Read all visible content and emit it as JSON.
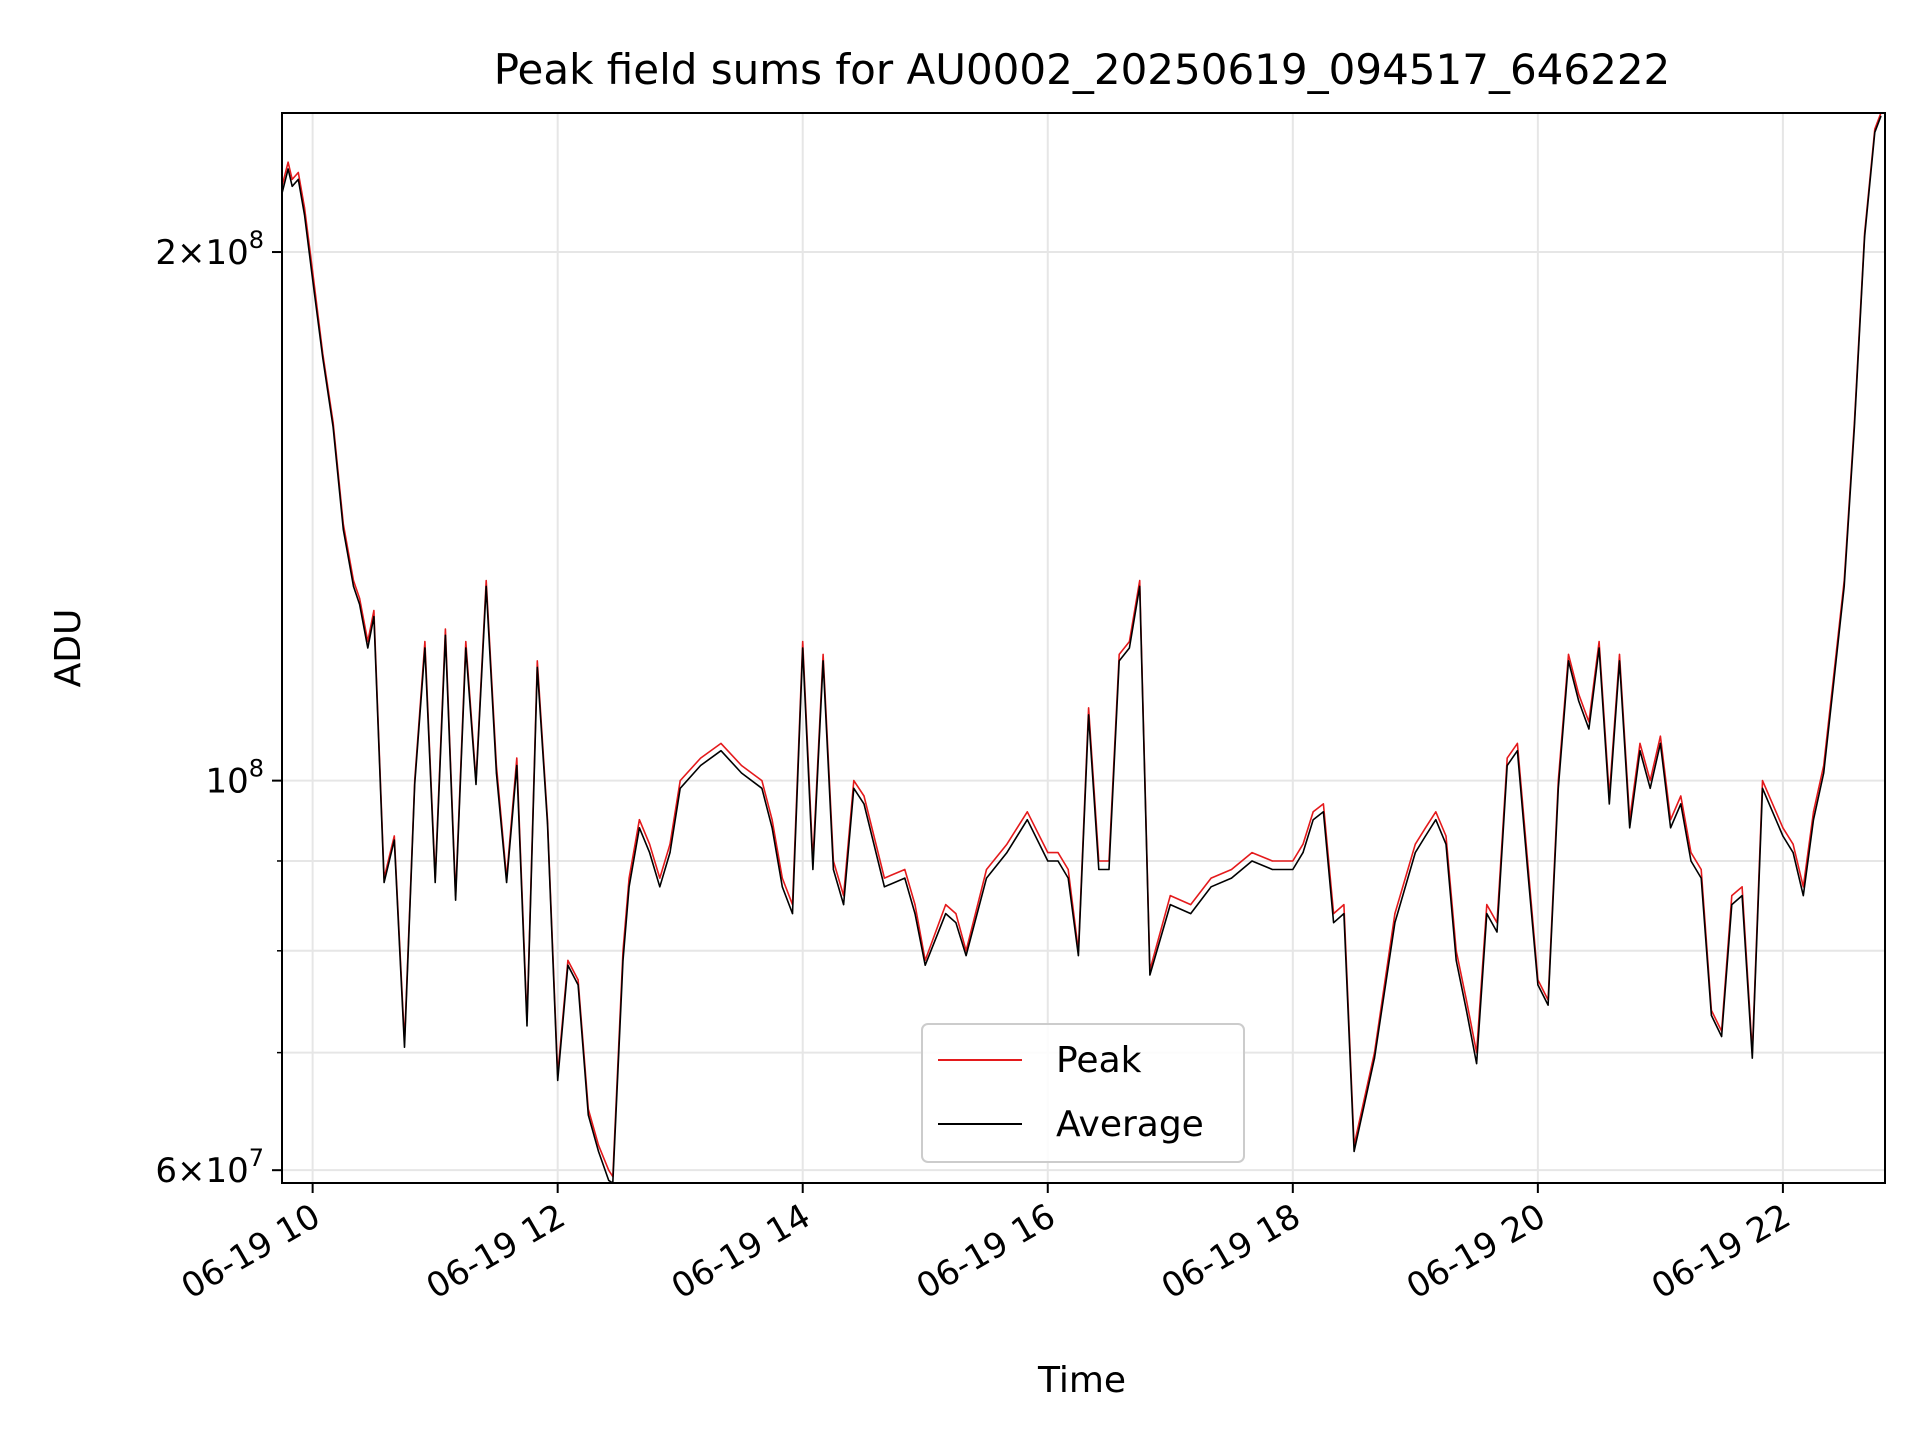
{
  "chart_data": {
    "type": "line",
    "title": "Peak field sums for AU0002_20250619_094517_646222",
    "xlabel": "Time",
    "ylabel": "ADU",
    "yscale": "log",
    "xlim": [
      "2025-06-19 09:45",
      "2025-06-19 22:50"
    ],
    "ylim": [
      59000000,
      240000000
    ],
    "grid": true,
    "legend_position": "lower-center",
    "x_ticks": [
      "06-19 10",
      "06-19 12",
      "06-19 14",
      "06-19 16",
      "06-19 18",
      "06-19 20",
      "06-19 22"
    ],
    "y_major_ticks": [
      {
        "value": 200000000,
        "label_base": "2×10",
        "label_exp": "8"
      },
      {
        "value": 100000000,
        "label_base": "10",
        "label_exp": "8"
      },
      {
        "value": 60000000,
        "label_base": "6×10",
        "label_exp": "7"
      }
    ],
    "y_minor_gridlines": [
      70000000,
      80000000,
      90000000
    ],
    "x": [
      "09:45",
      "09:48",
      "09:50",
      "09:53",
      "09:56",
      "10:00",
      "10:05",
      "10:10",
      "10:15",
      "10:20",
      "10:23",
      "10:27",
      "10:30",
      "10:35",
      "10:40",
      "10:45",
      "10:50",
      "10:55",
      "11:00",
      "11:05",
      "11:10",
      "11:15",
      "11:20",
      "11:25",
      "11:30",
      "11:35",
      "11:40",
      "11:45",
      "11:50",
      "11:55",
      "12:00",
      "12:05",
      "12:10",
      "12:15",
      "12:20",
      "12:25",
      "12:27",
      "12:32",
      "12:35",
      "12:40",
      "12:45",
      "12:50",
      "12:55",
      "13:00",
      "13:10",
      "13:20",
      "13:30",
      "13:40",
      "13:45",
      "13:50",
      "13:55",
      "14:00",
      "14:05",
      "14:10",
      "14:15",
      "14:20",
      "14:25",
      "14:30",
      "14:40",
      "14:50",
      "14:55",
      "15:00",
      "15:10",
      "15:15",
      "15:20",
      "15:30",
      "15:40",
      "15:50",
      "16:00",
      "16:05",
      "16:10",
      "16:15",
      "16:20",
      "16:25",
      "16:30",
      "16:35",
      "16:40",
      "16:45",
      "16:50",
      "17:00",
      "17:10",
      "17:20",
      "17:30",
      "17:40",
      "17:50",
      "18:00",
      "18:05",
      "18:10",
      "18:15",
      "18:20",
      "18:25",
      "18:30",
      "18:40",
      "18:50",
      "19:00",
      "19:05",
      "19:10",
      "19:15",
      "19:20",
      "19:25",
      "19:30",
      "19:35",
      "19:40",
      "19:45",
      "19:50",
      "19:55",
      "20:00",
      "20:05",
      "20:10",
      "20:15",
      "20:20",
      "20:25",
      "20:30",
      "20:35",
      "20:40",
      "20:45",
      "20:50",
      "20:55",
      "21:00",
      "21:05",
      "21:10",
      "21:15",
      "21:20",
      "21:25",
      "21:30",
      "21:35",
      "21:40",
      "21:45",
      "21:50",
      "22:00",
      "22:05",
      "22:10",
      "22:15",
      "22:20",
      "22:25",
      "22:30",
      "22:35",
      "22:40",
      "22:45",
      "22:48"
    ],
    "series": [
      {
        "name": "Peak",
        "color": "#e41a1c",
        "values": [
          218000000,
          225000000,
          220000000,
          222000000,
          212000000,
          195000000,
          175000000,
          160000000,
          140000000,
          130000000,
          127000000,
          120000000,
          125000000,
          88000000,
          93000000,
          71000000,
          100000000,
          120000000,
          88000000,
          122000000,
          86000000,
          120000000,
          100000000,
          130000000,
          102000000,
          88000000,
          103000000,
          73000000,
          117000000,
          95000000,
          68000000,
          79000000,
          77000000,
          65000000,
          62000000,
          60000000,
          59500000,
          80000000,
          88000000,
          95000000,
          92000000,
          88000000,
          92000000,
          100000000,
          103000000,
          105000000,
          102000000,
          100000000,
          95000000,
          88000000,
          85000000,
          120000000,
          90000000,
          118000000,
          90000000,
          86000000,
          100000000,
          98000000,
          88000000,
          89000000,
          85000000,
          79000000,
          85000000,
          84000000,
          80000000,
          89000000,
          92000000,
          96000000,
          91000000,
          91000000,
          89000000,
          80000000,
          110000000,
          90000000,
          90000000,
          118000000,
          120000000,
          130000000,
          78000000,
          86000000,
          85000000,
          88000000,
          89000000,
          91000000,
          90000000,
          90000000,
          92000000,
          96000000,
          97000000,
          84000000,
          85000000,
          62000000,
          70000000,
          84000000,
          92000000,
          94000000,
          96000000,
          93000000,
          80000000,
          75000000,
          70000000,
          85000000,
          83000000,
          103000000,
          105000000,
          90000000,
          77000000,
          75000000,
          100000000,
          118000000,
          112000000,
          108000000,
          120000000,
          98000000,
          118000000,
          95000000,
          105000000,
          100000000,
          106000000,
          95000000,
          98000000,
          91000000,
          89000000,
          74000000,
          72000000,
          86000000,
          87000000,
          70000000,
          100000000,
          94000000,
          92000000,
          87000000,
          96000000,
          102000000,
          115000000,
          130000000,
          160000000,
          205000000,
          235000000,
          240000000
        ]
      },
      {
        "name": "Average",
        "color": "#000000",
        "values": [
          216000000,
          223000000,
          218000000,
          220000000,
          210000000,
          193000000,
          174000000,
          159000000,
          139000000,
          129000000,
          126000000,
          119000000,
          124000000,
          87500000,
          92500000,
          70500000,
          99500000,
          119000000,
          87500000,
          121000000,
          85500000,
          119000000,
          99500000,
          129000000,
          101000000,
          87500000,
          102000000,
          72500000,
          116000000,
          94500000,
          67500000,
          78500000,
          76500000,
          64500000,
          61500000,
          59200000,
          59000000,
          79000000,
          87000000,
          94000000,
          91000000,
          87000000,
          91000000,
          99000000,
          102000000,
          104000000,
          101000000,
          99000000,
          94000000,
          87000000,
          84000000,
          119000000,
          89000000,
          117000000,
          89000000,
          85000000,
          99000000,
          97000000,
          87000000,
          88000000,
          84000000,
          78500000,
          84000000,
          83000000,
          79500000,
          88000000,
          91000000,
          95000000,
          90000000,
          90000000,
          88000000,
          79500000,
          109000000,
          89000000,
          89000000,
          117000000,
          119000000,
          129000000,
          77500000,
          85000000,
          84000000,
          87000000,
          88000000,
          90000000,
          89000000,
          89000000,
          91000000,
          95000000,
          96000000,
          83000000,
          84000000,
          61500000,
          69500000,
          83000000,
          91000000,
          93000000,
          95000000,
          92000000,
          79000000,
          74000000,
          69000000,
          84000000,
          82000000,
          102000000,
          104000000,
          89000000,
          76500000,
          74500000,
          99000000,
          117000000,
          111000000,
          107000000,
          119000000,
          97000000,
          117000000,
          94000000,
          104000000,
          99000000,
          105000000,
          94000000,
          97000000,
          90000000,
          88000000,
          73500000,
          71500000,
          85000000,
          86000000,
          69500000,
          99000000,
          93000000,
          91000000,
          86000000,
          95000000,
          101000000,
          114000000,
          129000000,
          159000000,
          204000000,
          234000000,
          239000000
        ]
      }
    ]
  }
}
